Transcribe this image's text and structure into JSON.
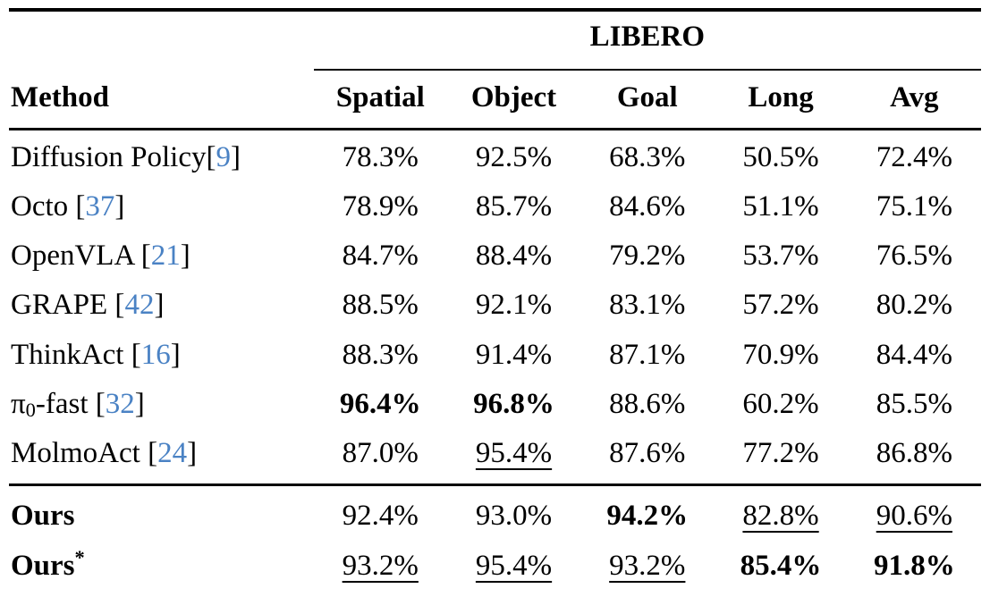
{
  "colors": {
    "text": "#000000",
    "citation_link": "#4a82c4",
    "rule": "#000000",
    "background": "#ffffff"
  },
  "table": {
    "group_title": "LIBERO",
    "method_header": "Method",
    "columns": [
      "Spatial",
      "Object",
      "Goal",
      "Long",
      "Avg"
    ],
    "rows": [
      {
        "method_parts": [
          {
            "text": "Diffusion Policy["
          },
          {
            "text": "9",
            "style": "cite"
          },
          {
            "text": "]"
          }
        ],
        "cells": [
          {
            "v": "78.3%"
          },
          {
            "v": "92.5%"
          },
          {
            "v": "68.3%"
          },
          {
            "v": "50.5%"
          },
          {
            "v": "72.4%"
          }
        ]
      },
      {
        "method_parts": [
          {
            "text": "Octo ["
          },
          {
            "text": "37",
            "style": "cite"
          },
          {
            "text": "]"
          }
        ],
        "cells": [
          {
            "v": "78.9%"
          },
          {
            "v": "85.7%"
          },
          {
            "v": "84.6%"
          },
          {
            "v": "51.1%"
          },
          {
            "v": "75.1%"
          }
        ]
      },
      {
        "method_parts": [
          {
            "text": "OpenVLA ["
          },
          {
            "text": "21",
            "style": "cite"
          },
          {
            "text": "]"
          }
        ],
        "cells": [
          {
            "v": "84.7%"
          },
          {
            "v": "88.4%"
          },
          {
            "v": "79.2%"
          },
          {
            "v": "53.7%"
          },
          {
            "v": "76.5%"
          }
        ]
      },
      {
        "method_parts": [
          {
            "text": "GRAPE ["
          },
          {
            "text": "42",
            "style": "cite"
          },
          {
            "text": "]"
          }
        ],
        "cells": [
          {
            "v": "88.5%"
          },
          {
            "v": "92.1%"
          },
          {
            "v": "83.1%"
          },
          {
            "v": "57.2%"
          },
          {
            "v": "80.2%"
          }
        ]
      },
      {
        "method_parts": [
          {
            "text": "ThinkAct ["
          },
          {
            "text": "16",
            "style": "cite"
          },
          {
            "text": "]"
          }
        ],
        "cells": [
          {
            "v": "88.3%"
          },
          {
            "v": "91.4%"
          },
          {
            "v": "87.1%"
          },
          {
            "v": "70.9%"
          },
          {
            "v": "84.4%"
          }
        ]
      },
      {
        "method_parts": [
          {
            "text": "π"
          },
          {
            "text": "0",
            "style": "sub"
          },
          {
            "text": "-fast ["
          },
          {
            "text": "32",
            "style": "cite"
          },
          {
            "text": "]"
          }
        ],
        "cells": [
          {
            "v": "96.4%",
            "b": true
          },
          {
            "v": "96.8%",
            "b": true
          },
          {
            "v": "88.6%"
          },
          {
            "v": "60.2%"
          },
          {
            "v": "85.5%"
          }
        ]
      },
      {
        "method_parts": [
          {
            "text": "MolmoAct ["
          },
          {
            "text": "24",
            "style": "cite"
          },
          {
            "text": "]"
          }
        ],
        "cells": [
          {
            "v": "87.0%"
          },
          {
            "v": "95.4%",
            "u": true
          },
          {
            "v": "87.6%"
          },
          {
            "v": "77.2%"
          },
          {
            "v": "86.8%"
          }
        ]
      }
    ],
    "ours_rows": [
      {
        "method_bold": true,
        "method_parts": [
          {
            "text": "Ours"
          }
        ],
        "cells": [
          {
            "v": "92.4%"
          },
          {
            "v": "93.0%"
          },
          {
            "v": "94.2%",
            "b": true
          },
          {
            "v": "82.8%",
            "u": true
          },
          {
            "v": "90.6%",
            "u": true
          }
        ]
      },
      {
        "method_bold": true,
        "method_parts": [
          {
            "text": "Ours"
          },
          {
            "text": "*",
            "style": "sup"
          }
        ],
        "cells": [
          {
            "v": "93.2%",
            "u": true
          },
          {
            "v": "95.4%",
            "u": true
          },
          {
            "v": "93.2%",
            "u": true
          },
          {
            "v": "85.4%",
            "b": true
          },
          {
            "v": "91.8%",
            "b": true
          }
        ]
      }
    ]
  }
}
